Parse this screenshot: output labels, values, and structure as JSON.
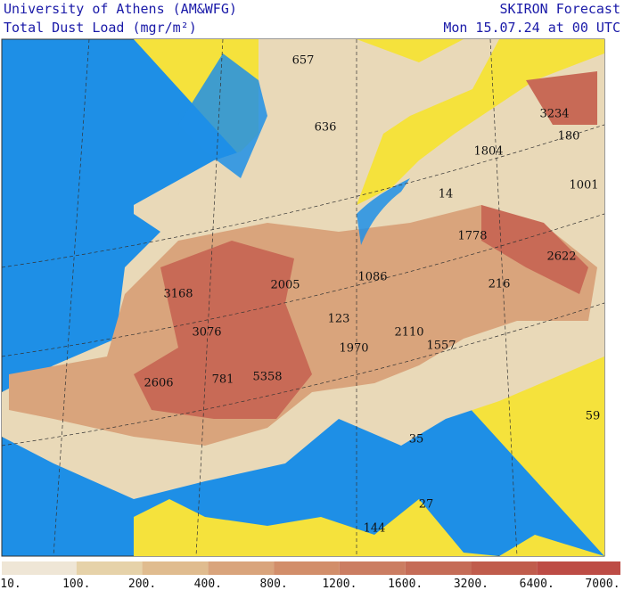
{
  "header": {
    "institution": "University of Athens (AM&WFG)",
    "product": "Total Dust Load (mgr/m²)",
    "model": "SKIRON Forecast",
    "date": "Mon 15.07.24 at 00 UTC"
  },
  "map": {
    "labels": [
      657,
      636,
      3234,
      180,
      1804,
      1001,
      14,
      1778,
      2622,
      1086,
      216,
      3168,
      2005,
      123,
      3076,
      2110,
      1970,
      1557,
      2606,
      781,
      5358,
      59,
      35,
      27,
      144
    ]
  },
  "colorbar": {
    "labels": [
      "10.",
      "100.",
      "200.",
      "400.",
      "800.",
      "1200.",
      "1600.",
      "3200.",
      "6400.",
      "7000."
    ],
    "colors": [
      "#efe6d6",
      "#e6d2a9",
      "#e0bc8f",
      "#d9a47c",
      "#d28e6a",
      "#cb7d62",
      "#c56c57",
      "#c05c4c",
      "#bd4c45"
    ]
  }
}
